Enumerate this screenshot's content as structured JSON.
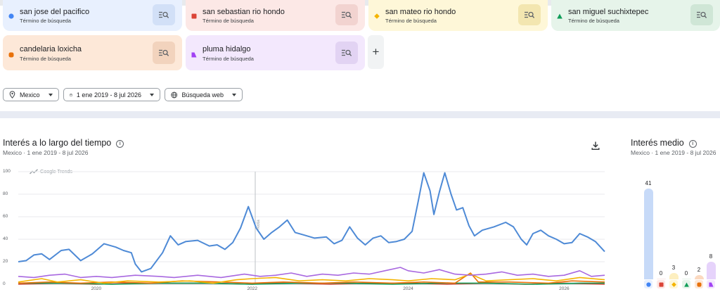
{
  "terms": [
    {
      "name": "san jose del pacifico",
      "subtitle": "Término de búsqueda",
      "color": "#4285f4",
      "bg": "#e8f0fe",
      "btnbg": "#d2e0f7",
      "shape": "circle",
      "icon": "search-list-icon"
    },
    {
      "name": "san sebastian rio hondo",
      "subtitle": "Término de búsqueda",
      "color": "#db4437",
      "bg": "#fce8e6",
      "btnbg": "#f2d3d0",
      "shape": "square",
      "icon": "search-list-icon"
    },
    {
      "name": "san mateo rio hondo",
      "subtitle": "Término de búsqueda",
      "color": "#f4b400",
      "bg": "#fef7d8",
      "btnbg": "#f3e6b0",
      "shape": "diamond",
      "icon": "search-list-icon"
    },
    {
      "name": "san miguel suchixtepec",
      "subtitle": "Término de búsqueda",
      "color": "#0f9d58",
      "bg": "#e6f4ea",
      "btnbg": "#cfe6d6",
      "shape": "triangle",
      "icon": "search-list-icon"
    },
    {
      "name": "candelaria loxicha",
      "subtitle": "Término de búsqueda",
      "color": "#e8710a",
      "bg": "#fde8d8",
      "btnbg": "#f2d3bd",
      "shape": "rounded-square",
      "icon": "search-list-icon"
    },
    {
      "name": "pluma hidalgo",
      "subtitle": "Término de búsqueda",
      "color": "#a142f4",
      "bg": "#f3e8fd",
      "btnbg": "#e2d3f3",
      "shape": "tab",
      "icon": "search-list-icon"
    }
  ],
  "add_label": "+",
  "filters": {
    "location": {
      "label": "Mexico",
      "icon": "location-pin-icon"
    },
    "date": {
      "label": "1 ene 2019 - 8 jul 2026",
      "icon": "calendar-icon"
    },
    "type": {
      "label": "Búsqueda web",
      "icon": "globe-icon"
    }
  },
  "over_time": {
    "title": "Interés a lo largo del tiempo",
    "subtitle": "Mexico  ·  1 ene 2019 - 8 jul 2026",
    "watermark": "Google Trends",
    "note_label": "Nota",
    "download_icon": "download-icon",
    "info_icon": "info-icon"
  },
  "avg": {
    "title": "Interés medio",
    "subtitle": "Mexico  ·  1 ene 2019 - 8 jul 2026",
    "info_icon": "info-icon"
  },
  "chart_data": [
    {
      "type": "line",
      "title": "Interés a lo largo del tiempo",
      "ylim": [
        0,
        100
      ],
      "yticks": [
        0,
        20,
        40,
        60,
        80,
        100
      ],
      "xlim": [
        2019.0,
        2026.52
      ],
      "xticks": [
        2020,
        2022,
        2024,
        2026
      ],
      "grid": true,
      "series": [
        {
          "name": "san jose del pacifico",
          "color": "#4e8ad6",
          "points": [
            [
              2019.0,
              20
            ],
            [
              2019.1,
              21
            ],
            [
              2019.2,
              26
            ],
            [
              2019.3,
              27
            ],
            [
              2019.4,
              22
            ],
            [
              2019.55,
              30
            ],
            [
              2019.65,
              31
            ],
            [
              2019.8,
              21
            ],
            [
              2019.95,
              27
            ],
            [
              2020.1,
              36
            ],
            [
              2020.25,
              33
            ],
            [
              2020.35,
              30
            ],
            [
              2020.45,
              28
            ],
            [
              2020.5,
              18
            ],
            [
              2020.58,
              11
            ],
            [
              2020.7,
              14
            ],
            [
              2020.85,
              28
            ],
            [
              2020.95,
              43
            ],
            [
              2021.05,
              35
            ],
            [
              2021.15,
              38
            ],
            [
              2021.3,
              39
            ],
            [
              2021.45,
              34
            ],
            [
              2021.55,
              35
            ],
            [
              2021.65,
              31
            ],
            [
              2021.75,
              37
            ],
            [
              2021.85,
              50
            ],
            [
              2021.95,
              69
            ],
            [
              2022.05,
              50
            ],
            [
              2022.15,
              40
            ],
            [
              2022.25,
              46
            ],
            [
              2022.35,
              51
            ],
            [
              2022.45,
              57
            ],
            [
              2022.55,
              46
            ],
            [
              2022.65,
              44
            ],
            [
              2022.8,
              41
            ],
            [
              2022.95,
              42
            ],
            [
              2023.05,
              36
            ],
            [
              2023.15,
              39
            ],
            [
              2023.25,
              51
            ],
            [
              2023.35,
              41
            ],
            [
              2023.45,
              35
            ],
            [
              2023.55,
              41
            ],
            [
              2023.65,
              43
            ],
            [
              2023.75,
              37
            ],
            [
              2023.85,
              38
            ],
            [
              2023.95,
              40
            ],
            [
              2024.05,
              47
            ],
            [
              2024.13,
              74
            ],
            [
              2024.2,
              99
            ],
            [
              2024.28,
              83
            ],
            [
              2024.33,
              62
            ],
            [
              2024.4,
              82
            ],
            [
              2024.47,
              99
            ],
            [
              2024.55,
              80
            ],
            [
              2024.62,
              66
            ],
            [
              2024.7,
              68
            ],
            [
              2024.78,
              52
            ],
            [
              2024.85,
              43
            ],
            [
              2024.95,
              48
            ],
            [
              2025.1,
              51
            ],
            [
              2025.25,
              55
            ],
            [
              2025.35,
              51
            ],
            [
              2025.45,
              40
            ],
            [
              2025.52,
              35
            ],
            [
              2025.6,
              45
            ],
            [
              2025.7,
              48
            ],
            [
              2025.8,
              43
            ],
            [
              2025.9,
              40
            ],
            [
              2026.0,
              36
            ],
            [
              2026.1,
              37
            ],
            [
              2026.2,
              45
            ],
            [
              2026.3,
              42
            ],
            [
              2026.4,
              38
            ],
            [
              2026.52,
              29
            ]
          ]
        },
        {
          "name": "san sebastian rio hondo",
          "color": "#db4437",
          "points": [
            [
              2019.0,
              0
            ],
            [
              2019.5,
              1
            ],
            [
              2020.0,
              0
            ],
            [
              2020.5,
              1
            ],
            [
              2021.0,
              1
            ],
            [
              2021.5,
              1
            ],
            [
              2022.0,
              0
            ],
            [
              2022.2,
              1
            ],
            [
              2022.5,
              1
            ],
            [
              2023.0,
              0
            ],
            [
              2023.5,
              1
            ],
            [
              2024.0,
              1
            ],
            [
              2024.5,
              0
            ],
            [
              2025.0,
              1
            ],
            [
              2025.5,
              0
            ],
            [
              2026.0,
              1
            ],
            [
              2026.52,
              0
            ]
          ]
        },
        {
          "name": "san mateo rio hondo",
          "color": "#f4b400",
          "points": [
            [
              2019.0,
              2
            ],
            [
              2019.3,
              5
            ],
            [
              2019.5,
              2
            ],
            [
              2019.8,
              4
            ],
            [
              2020.1,
              1
            ],
            [
              2020.4,
              3
            ],
            [
              2020.8,
              2
            ],
            [
              2021.2,
              3
            ],
            [
              2021.5,
              1
            ],
            [
              2021.8,
              4
            ],
            [
              2022.0,
              5
            ],
            [
              2022.3,
              6
            ],
            [
              2022.6,
              3
            ],
            [
              2022.9,
              4
            ],
            [
              2023.2,
              3
            ],
            [
              2023.5,
              5
            ],
            [
              2023.8,
              4
            ],
            [
              2024.0,
              3
            ],
            [
              2024.3,
              5
            ],
            [
              2024.6,
              4
            ],
            [
              2024.8,
              9
            ],
            [
              2025.0,
              3
            ],
            [
              2025.3,
              4
            ],
            [
              2025.6,
              5
            ],
            [
              2025.9,
              3
            ],
            [
              2026.2,
              6
            ],
            [
              2026.52,
              4
            ]
          ]
        },
        {
          "name": "san miguel suchixtepec",
          "color": "#0f9d58",
          "points": [
            [
              2019.0,
              1
            ],
            [
              2019.6,
              1
            ],
            [
              2020.2,
              0
            ],
            [
              2020.8,
              1
            ],
            [
              2021.4,
              1
            ],
            [
              2022.0,
              0
            ],
            [
              2022.6,
              1
            ],
            [
              2023.2,
              1
            ],
            [
              2023.8,
              0
            ],
            [
              2024.4,
              1
            ],
            [
              2025.0,
              1
            ],
            [
              2025.6,
              0
            ],
            [
              2026.2,
              1
            ],
            [
              2026.52,
              1
            ]
          ]
        },
        {
          "name": "candelaria loxicha",
          "color": "#e8710a",
          "points": [
            [
              2019.0,
              1
            ],
            [
              2019.4,
              2
            ],
            [
              2019.8,
              1
            ],
            [
              2020.2,
              2
            ],
            [
              2020.7,
              1
            ],
            [
              2021.1,
              3
            ],
            [
              2021.6,
              2
            ],
            [
              2022.0,
              1
            ],
            [
              2022.4,
              2
            ],
            [
              2022.9,
              1
            ],
            [
              2023.3,
              2
            ],
            [
              2023.8,
              1
            ],
            [
              2024.2,
              2
            ],
            [
              2024.6,
              1
            ],
            [
              2024.8,
              10
            ],
            [
              2024.9,
              2
            ],
            [
              2025.3,
              2
            ],
            [
              2025.8,
              1
            ],
            [
              2026.1,
              3
            ],
            [
              2026.52,
              2
            ]
          ]
        },
        {
          "name": "pluma hidalgo",
          "color": "#a868e0",
          "points": [
            [
              2019.0,
              7
            ],
            [
              2019.2,
              6
            ],
            [
              2019.4,
              8
            ],
            [
              2019.6,
              9
            ],
            [
              2019.8,
              6
            ],
            [
              2020.0,
              7
            ],
            [
              2020.2,
              6
            ],
            [
              2020.5,
              8
            ],
            [
              2020.8,
              7
            ],
            [
              2021.0,
              6
            ],
            [
              2021.3,
              8
            ],
            [
              2021.6,
              6
            ],
            [
              2021.9,
              9
            ],
            [
              2022.1,
              7
            ],
            [
              2022.3,
              8
            ],
            [
              2022.5,
              10
            ],
            [
              2022.7,
              7
            ],
            [
              2022.9,
              9
            ],
            [
              2023.1,
              8
            ],
            [
              2023.3,
              10
            ],
            [
              2023.5,
              9
            ],
            [
              2023.7,
              12
            ],
            [
              2023.9,
              15
            ],
            [
              2024.0,
              12
            ],
            [
              2024.2,
              10
            ],
            [
              2024.4,
              13
            ],
            [
              2024.6,
              9
            ],
            [
              2024.8,
              8
            ],
            [
              2025.0,
              9
            ],
            [
              2025.2,
              11
            ],
            [
              2025.4,
              8
            ],
            [
              2025.6,
              9
            ],
            [
              2025.8,
              7
            ],
            [
              2026.0,
              8
            ],
            [
              2026.2,
              12
            ],
            [
              2026.35,
              7
            ],
            [
              2026.52,
              8
            ]
          ]
        }
      ]
    },
    {
      "type": "bar",
      "title": "Interés medio",
      "categories": [
        "san jose del pacifico",
        "san sebastian rio hondo",
        "san mateo rio hondo",
        "san miguel suchixtepec",
        "candelaria loxicha",
        "pluma hidalgo"
      ],
      "values": [
        41,
        0,
        3,
        0,
        2,
        8
      ],
      "ylim": [
        0,
        41
      ]
    }
  ]
}
